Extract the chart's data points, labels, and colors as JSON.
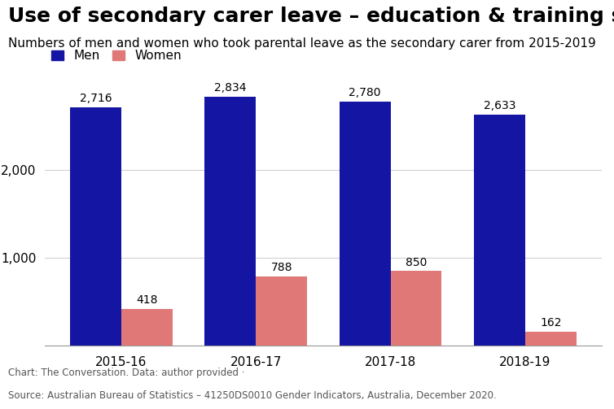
{
  "title": "Use of secondary carer leave – education & training sector",
  "subtitle": "Numbers of men and women who took parental leave as the secondary carer from 2015-2019",
  "categories": [
    "2015-16",
    "2016-17",
    "2017-18",
    "2018-19"
  ],
  "men_values": [
    2716,
    2834,
    2780,
    2633
  ],
  "women_values": [
    418,
    788,
    850,
    162
  ],
  "men_color": "#1515a3",
  "women_color": "#e07878",
  "ylim": [
    0,
    3100
  ],
  "bar_width": 0.38,
  "legend_men": "Men",
  "legend_women": "Women",
  "footer_line1": "Chart: The Conversation. Data: author provided ·",
  "footer_line2": "Source: Australian Bureau of Statistics – 41250DS0010 Gender Indicators, Australia, December 2020.",
  "background_color": "#ffffff",
  "title_fontsize": 18,
  "subtitle_fontsize": 11,
  "label_fontsize": 10,
  "tick_fontsize": 11,
  "footer_fontsize": 8.5,
  "legend_fontsize": 11
}
